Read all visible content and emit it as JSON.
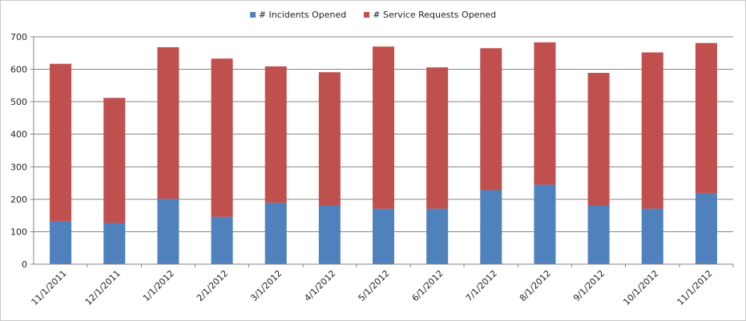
{
  "chart_data": {
    "type": "bar",
    "stacked": true,
    "categories": [
      "11/1/2011",
      "12/1/2011",
      "1/1/2012",
      "2/1/2012",
      "3/1/2012",
      "4/1/2012",
      "5/1/2012",
      "6/1/2012",
      "7/1/2012",
      "8/1/2012",
      "9/1/2012",
      "10/1/2012",
      "11/1/2012"
    ],
    "series": [
      {
        "name": "# Incidents Opened",
        "color": "#4f81bd",
        "values": [
          133,
          127,
          201,
          146,
          189,
          180,
          171,
          171,
          228,
          245,
          180,
          171,
          218
        ]
      },
      {
        "name": "# Service Requests Opened",
        "color": "#c0504d",
        "values": [
          484,
          385,
          467,
          487,
          420,
          411,
          499,
          435,
          437,
          438,
          409,
          481,
          463
        ]
      }
    ],
    "ylim": [
      0,
      700
    ],
    "yticks": [
      0,
      100,
      200,
      300,
      400,
      500,
      600,
      700
    ],
    "grid": true,
    "legend_position": "top"
  }
}
